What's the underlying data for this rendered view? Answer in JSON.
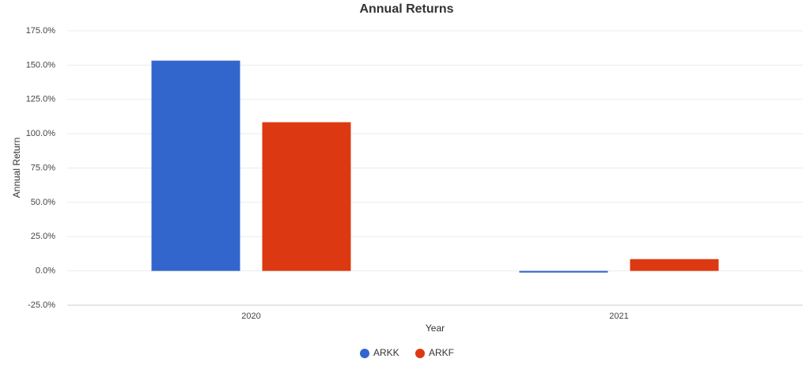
{
  "chart_data": {
    "type": "bar",
    "title": "Annual Returns",
    "x_label": "Year",
    "y_label": "Annual Return",
    "categories": [
      "2020",
      "2021"
    ],
    "series": [
      {
        "name": "ARKK",
        "color": "#3366cc",
        "values": [
          153.3,
          -1.2
        ]
      },
      {
        "name": "ARKF",
        "color": "#dc3912",
        "values": [
          108.4,
          8.6
        ]
      }
    ],
    "ylim": [
      -25,
      175
    ],
    "yticks": [
      {
        "value": -25,
        "label": "-25.0%"
      },
      {
        "value": 0,
        "label": "0.0%"
      },
      {
        "value": 25,
        "label": "25.0%"
      },
      {
        "value": 50,
        "label": "50.0%"
      },
      {
        "value": 75,
        "label": "75.0%"
      },
      {
        "value": 100,
        "label": "100.0%"
      },
      {
        "value": 125,
        "label": "125.0%"
      },
      {
        "value": 150,
        "label": "150.0%"
      },
      {
        "value": 175,
        "label": "175.0%"
      }
    ],
    "grid": true,
    "legend": "bottom"
  }
}
